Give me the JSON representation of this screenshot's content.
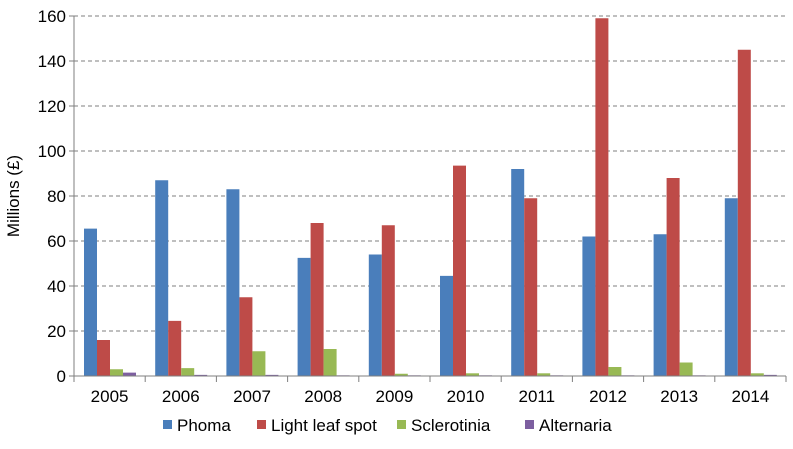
{
  "chart_data": {
    "type": "bar",
    "categories": [
      "2005",
      "2006",
      "2007",
      "2008",
      "2009",
      "2010",
      "2011",
      "2012",
      "2013",
      "2014"
    ],
    "series": [
      {
        "name": "Phoma",
        "color": "#4a7ebb",
        "values": [
          65.5,
          87,
          83,
          52.5,
          54,
          44.5,
          92,
          62,
          63,
          79
        ]
      },
      {
        "name": "Light leaf spot",
        "color": "#be4b48",
        "values": [
          16,
          24.5,
          35,
          68,
          67,
          93.5,
          79,
          159,
          88,
          145
        ]
      },
      {
        "name": "Sclerotinia",
        "color": "#98b954",
        "values": [
          3,
          3.5,
          11,
          12,
          1,
          1.2,
          1.2,
          4,
          6,
          1.2
        ]
      },
      {
        "name": "Alternaria",
        "color": "#7d5fa0",
        "values": [
          1.5,
          0.5,
          0.5,
          0.3,
          0.3,
          0.3,
          0.3,
          0.3,
          0.3,
          0.5
        ]
      }
    ],
    "ylabel": "Millions (£)",
    "xlabel": "",
    "ylim": [
      0,
      160
    ],
    "yticks": [
      "0",
      "20",
      "40",
      "60",
      "80",
      "100",
      "120",
      "140",
      "160"
    ],
    "grid": true,
    "legend_position": "bottom"
  }
}
